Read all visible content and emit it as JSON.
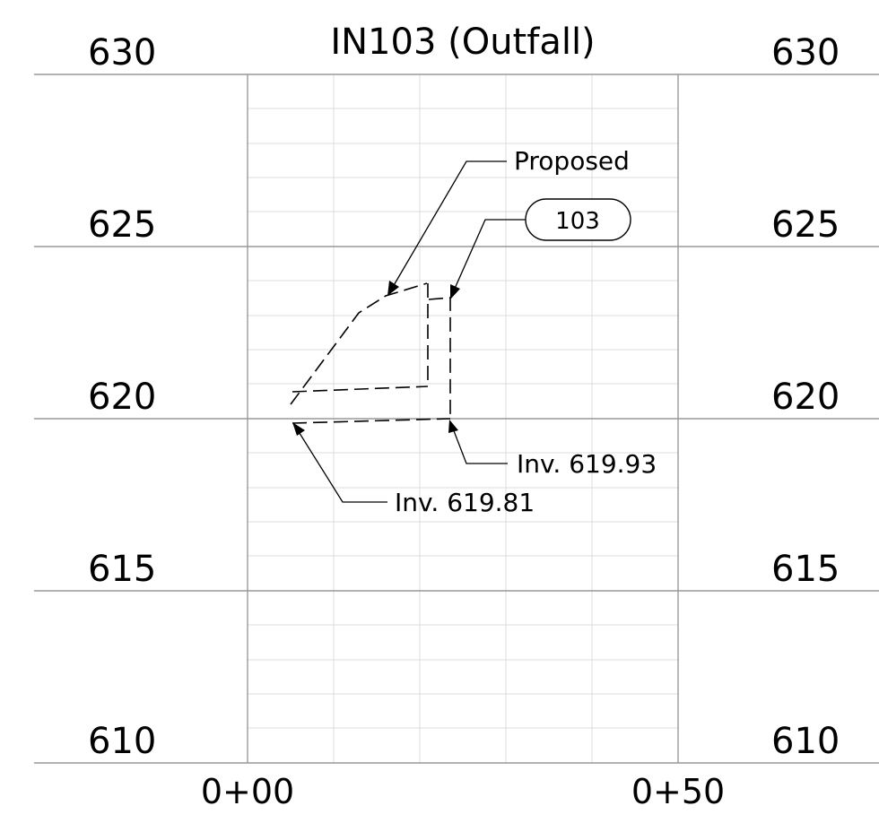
{
  "title": "IN103 (Outfall)",
  "elevations": [
    "630",
    "625",
    "620",
    "615",
    "610"
  ],
  "stations": [
    "0+00",
    "0+50"
  ],
  "labels": {
    "proposed": "Proposed",
    "structure_tag": "103",
    "invert_right": "Inv. 619.93",
    "invert_left": "Inv. 619.81"
  }
}
